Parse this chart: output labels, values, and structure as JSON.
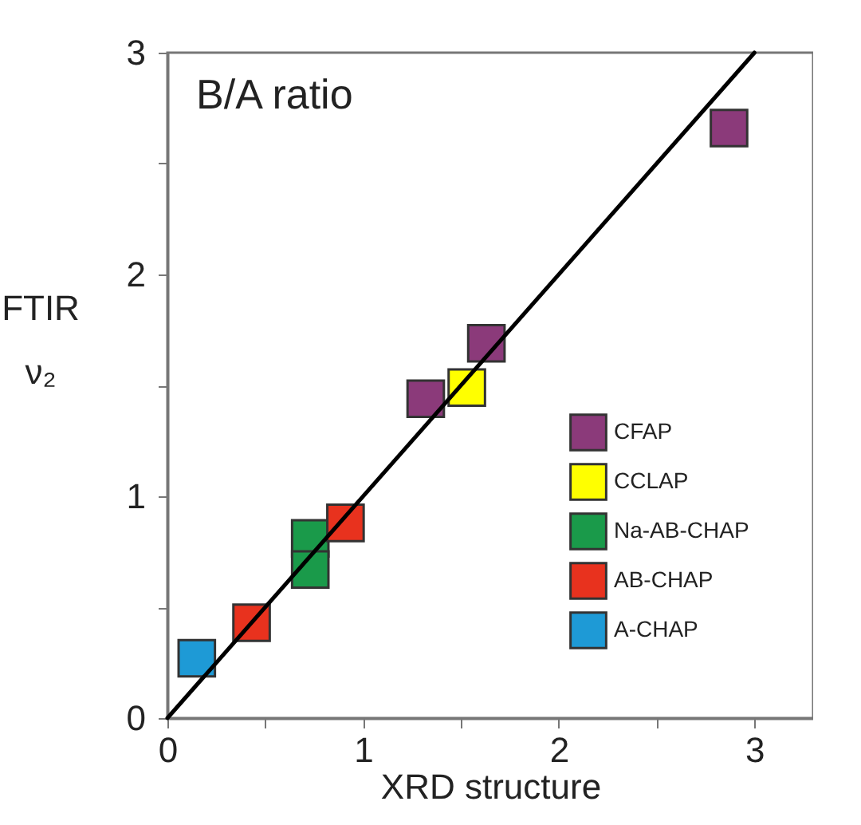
{
  "chart_data": {
    "type": "scatter",
    "xlabel": "XRD structure",
    "ylabel": "FTIR\nν₂",
    "annotations": [
      "B/A ratio"
    ],
    "xlim": [
      0,
      3.3
    ],
    "ylim": [
      0,
      3
    ],
    "xticks": [
      0,
      {
        "value": 0.5,
        "label": null
      },
      1,
      {
        "value": 1.5,
        "label": null
      },
      2,
      {
        "value": 2.5,
        "label": null
      },
      3
    ],
    "yticks": [
      0,
      {
        "value": 0.5,
        "label": null
      },
      1,
      {
        "value": 1.5,
        "label": null
      },
      2,
      {
        "value": 2.5,
        "label": null
      },
      3
    ],
    "grid": false,
    "legend": "bottom right",
    "marker": "square",
    "series": [
      {
        "name": "CFAP",
        "color": "#8b3a7a",
        "x": [
          2.87,
          1.63,
          1.32
        ],
        "values": [
          2.66,
          1.69,
          1.44
        ]
      },
      {
        "name": "CCLAP",
        "color": "#ffff00",
        "x": [
          1.53
        ],
        "values": [
          1.49
        ]
      },
      {
        "name": "Na-AB-CHAP",
        "color": "#1a9a4a",
        "x": [
          0.73,
          0.73
        ],
        "values": [
          0.81,
          0.67
        ]
      },
      {
        "name": "AB-CHAP",
        "color": "#e8321e",
        "x": [
          0.91,
          0.43
        ],
        "values": [
          0.88,
          0.43
        ]
      },
      {
        "name": "A-CHAP",
        "color": "#1e9ad6",
        "x": [
          0.15
        ],
        "values": [
          0.27
        ]
      },
      {
        "type": "line",
        "marker": "none",
        "color": "#000000",
        "x": [
          0,
          3
        ],
        "values": [
          0,
          3
        ]
      }
    ]
  }
}
